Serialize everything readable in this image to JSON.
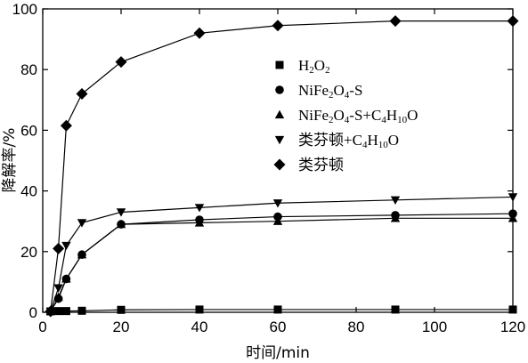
{
  "chart_data": {
    "type": "line",
    "xlabel": "时间/min",
    "ylabel": "降解率/%",
    "xlim": [
      0,
      120
    ],
    "ylim": [
      0,
      100
    ],
    "xticks": [
      0,
      20,
      40,
      60,
      80,
      100,
      120
    ],
    "yticks": [
      0,
      20,
      40,
      60,
      80,
      100
    ],
    "grid": false,
    "legend_position": "center-right",
    "series": [
      {
        "name": "H2O2",
        "marker": "square",
        "x": [
          2,
          4,
          6,
          10,
          20,
          40,
          60,
          90,
          120
        ],
        "y": [
          0.3,
          0.4,
          0.4,
          0.5,
          0.8,
          0.9,
          0.9,
          0.9,
          0.9
        ]
      },
      {
        "name": "NiFe2O4-S",
        "marker": "circle",
        "x": [
          2,
          4,
          6,
          10,
          20,
          40,
          60,
          90,
          120
        ],
        "y": [
          0.3,
          4.5,
          11,
          19,
          29,
          30.5,
          31.5,
          32,
          32.5
        ]
      },
      {
        "name": "NiFe2O4-S+C4H10O",
        "marker": "triangle-up",
        "x": [
          2,
          4,
          6,
          10,
          20,
          40,
          60,
          90,
          120
        ],
        "y": [
          0.3,
          5,
          11,
          19,
          29,
          29.5,
          30,
          31,
          31
        ]
      },
      {
        "name": "类芬顿+C4H10O",
        "marker": "triangle-down",
        "x": [
          2,
          4,
          6,
          10,
          20,
          40,
          60,
          90,
          120
        ],
        "y": [
          0.3,
          8,
          22,
          29.5,
          33,
          34.5,
          36,
          37,
          38
        ]
      },
      {
        "name": "类芬顿",
        "marker": "diamond",
        "x": [
          2,
          4,
          6,
          10,
          20,
          40,
          60,
          90,
          120
        ],
        "y": [
          0.3,
          21,
          61.5,
          72,
          82.5,
          92,
          94.5,
          96,
          96
        ]
      }
    ]
  },
  "legend": {
    "items": [
      {
        "base": "H",
        "sub1": "2",
        "mid": "O",
        "sub2": "2",
        "tail": ""
      },
      {
        "base": "NiFe",
        "sub1": "2",
        "mid": "O",
        "sub2": "4",
        "tail": "-S"
      },
      {
        "base": "NiFe",
        "sub1": "2",
        "mid": "O",
        "sub2": "4",
        "tail": "-S+C",
        "sub3": "4",
        "mid2": "H",
        "sub4": "10",
        "tail2": "O"
      },
      {
        "base": "类芬顿+C",
        "sub1": "4",
        "mid": "H",
        "sub2": "10",
        "tail": "O"
      },
      {
        "base": "类芬顿",
        "sub1": "",
        "mid": "",
        "sub2": "",
        "tail": ""
      }
    ]
  }
}
